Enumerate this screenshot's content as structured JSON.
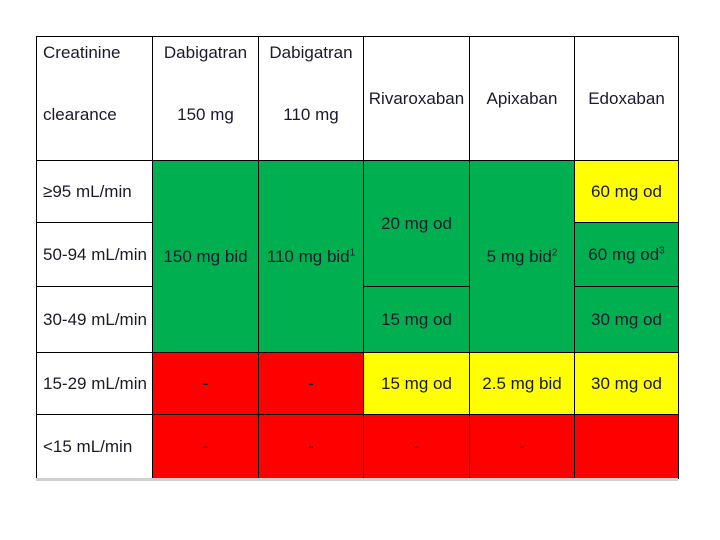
{
  "headers": {
    "col1_line1": "Creatinine",
    "col1_line2": "clearance",
    "col2_line1": "Dabigatran",
    "col2_line2": "150 mg",
    "col3_line1": "Dabigatran",
    "col3_line2": "110 mg",
    "col4": "Rivaroxaban",
    "col5": "Apixaban",
    "col6": "Edoxaban"
  },
  "rows": {
    "r1_label": "≥95 mL/min",
    "r2_label": "50-94 mL/min",
    "r3_label": "30-49 mL/min",
    "r4_label": "15-29 mL/min",
    "r5_label": "<15 mL/min"
  },
  "cells": {
    "dabi150_main": "150 mg bid",
    "dabi110_main": "110 mg bid",
    "dabi110_sup": "1",
    "riva_main": "20 mg od",
    "riva_r3": "15 mg od",
    "riva_r4": "15 mg od",
    "apix_main": "5 mg bid",
    "apix_sup": "2",
    "apix_r4": "2.5 mg bid",
    "edox_r1": "60 mg od",
    "edox_r2": "60 mg od",
    "edox_r2_sup": "3",
    "edox_r3": "30 mg od",
    "edox_r4": "30 mg od",
    "dash": "-"
  },
  "colors": {
    "green": "#00b050",
    "yellow": "#ffff00",
    "red": "#ff0000"
  }
}
